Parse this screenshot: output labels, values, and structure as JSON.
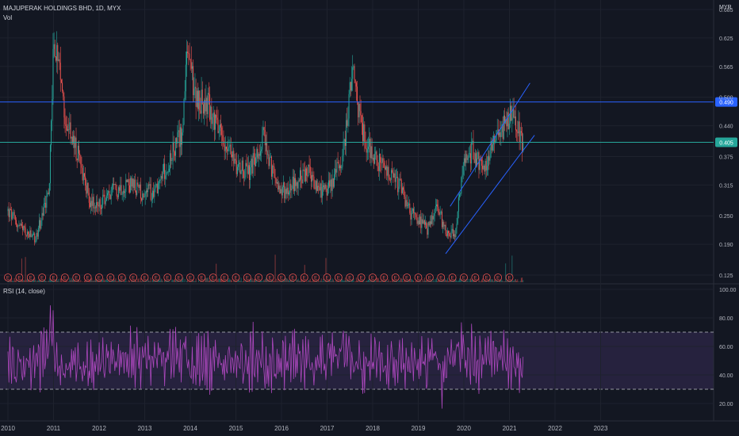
{
  "header": {
    "symbol_line": "MAJUPERAK HOLDINGS BHD, 1D, MYX",
    "volume_label": "Vol",
    "currency": "MYR"
  },
  "rsi": {
    "label": "RSI (14, close)",
    "upper_band": 70,
    "lower_band": 30,
    "axis_ticks": [
      "100.00",
      "80.00",
      "60.00",
      "40.00",
      "20.00"
    ]
  },
  "price_axis": {
    "ticks": [
      "0.685",
      "0.625",
      "0.565",
      "0.500",
      "0.440",
      "0.375",
      "0.315",
      "0.250",
      "0.190",
      "0.125"
    ]
  },
  "time_axis": {
    "ticks": [
      "2010",
      "2011",
      "2012",
      "2013",
      "2014",
      "2015",
      "2016",
      "2017",
      "2018",
      "2019",
      "2020",
      "2021",
      "2022",
      "2023"
    ]
  },
  "lines": {
    "resistance_label": "0.490",
    "resistance_color": "#2962ff",
    "current_label": "0.405",
    "current_color": "#26a69a"
  },
  "chart_data": {
    "type": "candlestick",
    "series": [
      {
        "name": "MAJUPERAK HOLDINGS BHD",
        "approx_close": [
          [
            2010.0,
            0.26
          ],
          [
            2010.3,
            0.22
          ],
          [
            2010.6,
            0.2
          ],
          [
            2010.9,
            0.3
          ],
          [
            2011.0,
            0.62
          ],
          [
            2011.1,
            0.56
          ],
          [
            2011.3,
            0.44
          ],
          [
            2011.6,
            0.36
          ],
          [
            2011.8,
            0.28
          ],
          [
            2012.0,
            0.27
          ],
          [
            2012.3,
            0.3
          ],
          [
            2012.6,
            0.32
          ],
          [
            2012.9,
            0.3
          ],
          [
            2013.2,
            0.3
          ],
          [
            2013.5,
            0.36
          ],
          [
            2013.8,
            0.42
          ],
          [
            2013.95,
            0.6
          ],
          [
            2014.1,
            0.5
          ],
          [
            2014.4,
            0.48
          ],
          [
            2014.7,
            0.42
          ],
          [
            2015.0,
            0.36
          ],
          [
            2015.3,
            0.34
          ],
          [
            2015.6,
            0.42
          ],
          [
            2015.8,
            0.34
          ],
          [
            2016.0,
            0.3
          ],
          [
            2016.3,
            0.32
          ],
          [
            2016.6,
            0.34
          ],
          [
            2016.9,
            0.3
          ],
          [
            2017.1,
            0.32
          ],
          [
            2017.35,
            0.38
          ],
          [
            2017.55,
            0.55
          ],
          [
            2017.8,
            0.42
          ],
          [
            2018.0,
            0.38
          ],
          [
            2018.3,
            0.34
          ],
          [
            2018.6,
            0.31
          ],
          [
            2018.8,
            0.26
          ],
          [
            2019.0,
            0.24
          ],
          [
            2019.2,
            0.22
          ],
          [
            2019.4,
            0.27
          ],
          [
            2019.6,
            0.22
          ],
          [
            2019.8,
            0.21
          ],
          [
            2020.0,
            0.36
          ],
          [
            2020.2,
            0.39
          ],
          [
            2020.45,
            0.34
          ],
          [
            2020.65,
            0.42
          ],
          [
            2020.9,
            0.44
          ],
          [
            2021.0,
            0.46
          ],
          [
            2021.15,
            0.44
          ],
          [
            2021.3,
            0.4
          ]
        ]
      }
    ],
    "xlim": [
      2010,
      2023
    ],
    "ylim": [
      0.125,
      0.685
    ],
    "rsi_ylim": [
      20,
      100
    ],
    "trend_channel": {
      "upper": [
        [
          2019.7,
          0.27
        ],
        [
          2021.45,
          0.53
        ]
      ],
      "lower": [
        [
          2019.6,
          0.17
        ],
        [
          2021.55,
          0.42
        ]
      ]
    },
    "grid": true,
    "legend": "top-left"
  }
}
